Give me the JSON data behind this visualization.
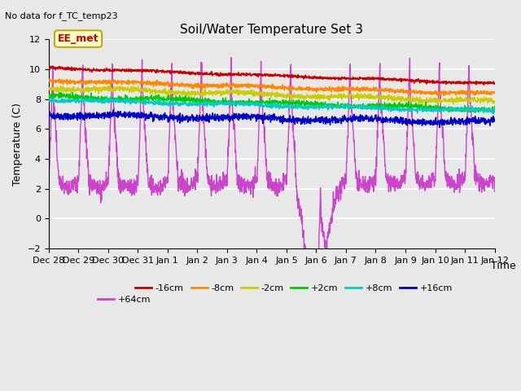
{
  "title": "Soil/Water Temperature Set 3",
  "subtitle": "No data for f_TC_temp23",
  "ylabel": "Temperature (C)",
  "xlabel": "Time",
  "ylim": [
    -2,
    12
  ],
  "yticks": [
    -2,
    0,
    2,
    4,
    6,
    8,
    10,
    12
  ],
  "xlim": [
    0,
    15
  ],
  "background_color": "#e8e8e8",
  "grid_color": "white",
  "annotation_text": "EE_met",
  "annotation_bg": "#ffffcc",
  "annotation_border": "#bbaa00",
  "x_tick_labels": [
    "Dec 28",
    "Dec 29",
    "Dec 30",
    "Dec 31",
    "Jan 1",
    "Jan 2",
    "Jan 3",
    "Jan 4",
    "Jan 5",
    "Jan 6",
    "Jan 7",
    "Jan 8",
    "Jan 9",
    "Jan 10",
    "Jan 11",
    "Jan 12"
  ],
  "series": [
    {
      "label": "-16cm",
      "color": "#cc0000",
      "base": 10.1,
      "end": 9.05,
      "noise": 0.05
    },
    {
      "label": "-8cm",
      "color": "#ff8800",
      "base": 9.25,
      "end": 8.35,
      "noise": 0.07
    },
    {
      "label": "-2cm",
      "color": "#cccc00",
      "base": 8.75,
      "end": 7.85,
      "noise": 0.09
    },
    {
      "label": "+2cm",
      "color": "#00cc00",
      "base": 8.2,
      "end": 7.3,
      "noise": 0.09
    },
    {
      "label": "+8cm",
      "color": "#00cccc",
      "base": 7.95,
      "end": 7.2,
      "noise": 0.07
    },
    {
      "label": "+16cm",
      "color": "#0000cc",
      "base": 6.95,
      "end": 6.45,
      "noise": 0.12
    }
  ],
  "purple_label": "+64cm",
  "purple_color": "#cc44cc"
}
